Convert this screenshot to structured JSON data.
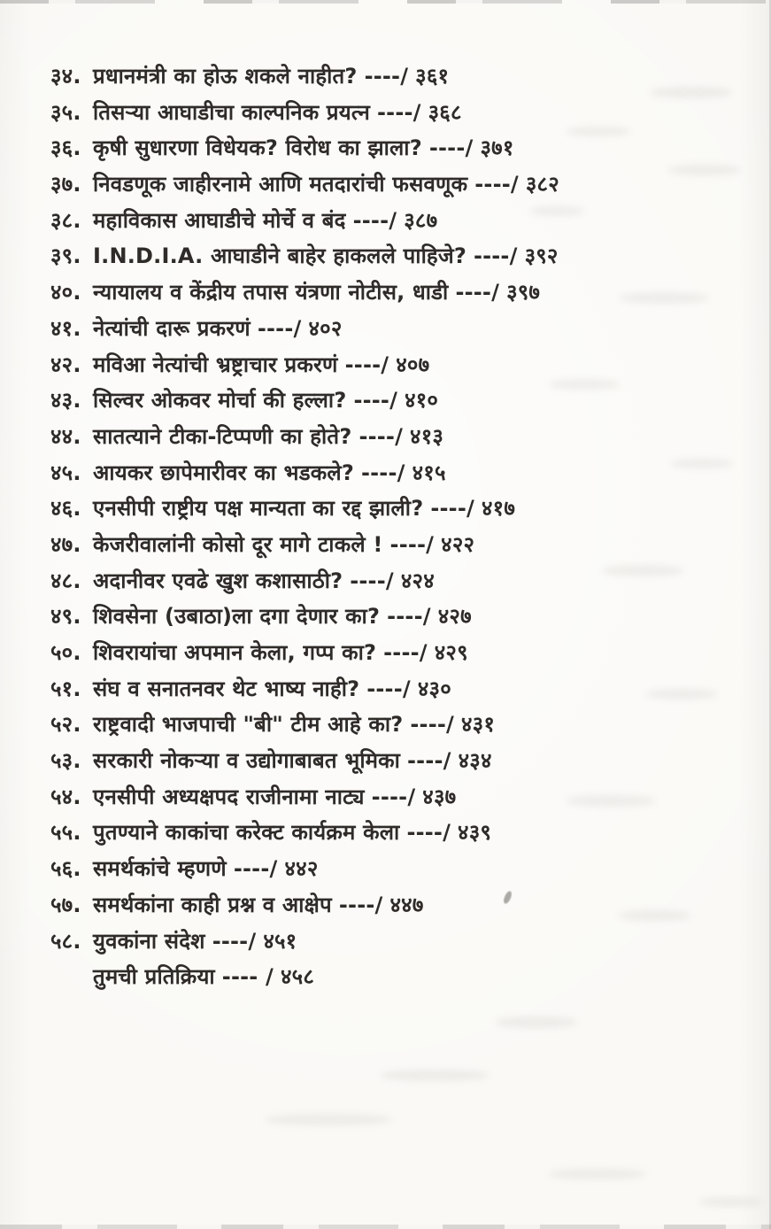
{
  "colors": {
    "paper": "#faf9f6",
    "ink": "#2e2b28",
    "bleed": "#9b978f"
  },
  "toc": {
    "items": [
      {
        "num": "३४.",
        "title": "प्रधानमंत्री का होऊ शकले नाहीत?",
        "sep": "----/",
        "page": "३६१"
      },
      {
        "num": "३५.",
        "title": "तिसऱ्या आघाडीचा काल्पनिक प्रयत्न",
        "sep": "----/",
        "page": "३६८"
      },
      {
        "num": "३६.",
        "title": "कृषी सुधारणा विधेयक? विरोध का झाला?",
        "sep": "----/",
        "page": "३७१"
      },
      {
        "num": "३७.",
        "title": "निवडणूक जाहीरनामे आणि मतदारांची फसवणूक",
        "sep": "----/",
        "page": "३८२"
      },
      {
        "num": "३८.",
        "title": "महाविकास आघाडीचे मोर्चे व बंद",
        "sep": "----/",
        "page": "३८७"
      },
      {
        "num": "३९.",
        "title": "I.N.D.I.A. आघाडीने बाहेर हाकलले पाहिजे?",
        "sep": "----/",
        "page": "३९२"
      },
      {
        "num": "४०.",
        "title": "न्यायालय व केंद्रीय तपास यंत्रणा नोटीस, धाडी",
        "sep": "----/",
        "page": "३९७"
      },
      {
        "num": "४१.",
        "title": "नेत्यांची दारू प्रकरणं",
        "sep": "----/",
        "page": "४०२"
      },
      {
        "num": "४२.",
        "title": "मविआ नेत्यांची भ्रष्ट्राचार प्रकरणं",
        "sep": "----/",
        "page": "४०७"
      },
      {
        "num": "४३.",
        "title": "सिल्वर ओकवर मोर्चा की हल्ला?",
        "sep": "----/",
        "page": "४१०"
      },
      {
        "num": "४४.",
        "title": "सातत्याने टीका-टिप्पणी का होते?",
        "sep": "----/",
        "page": "४१३"
      },
      {
        "num": "४५.",
        "title": "आयकर छापेमारीवर का भडकले?",
        "sep": "----/",
        "page": "४१५"
      },
      {
        "num": "४६.",
        "title": "एनसीपी राष्ट्रीय पक्ष मान्यता का रद्द झाली?",
        "sep": "----/",
        "page": "४१७"
      },
      {
        "num": "४७.",
        "title": "केजरीवालांनी कोसो दूर मागे टाकले !",
        "sep": "----/",
        "page": "४२२"
      },
      {
        "num": "४८.",
        "title": "अदानीवर एवढे खुश कशासाठी?",
        "sep": "----/",
        "page": "४२४"
      },
      {
        "num": "४९.",
        "title": "शिवसेना (उबाठा)ला दगा देणार का?",
        "sep": "----/",
        "page": "४२७"
      },
      {
        "num": "५०.",
        "title": "शिवरायांचा अपमान केला, गप्प का?",
        "sep": "----/",
        "page": "४२९"
      },
      {
        "num": "५१.",
        "title": "संघ व सनातनवर थेट भाष्य नाही?",
        "sep": "----/",
        "page": "४३०"
      },
      {
        "num": "५२.",
        "title": "राष्ट्रवादी भाजपाची \"बी\" टीम आहे का?",
        "sep": "----/",
        "page": "४३१"
      },
      {
        "num": "५३.",
        "title": "सरकारी नोकऱ्या व उद्योगाबाबत भूमिका",
        "sep": "----/",
        "page": "४३४"
      },
      {
        "num": "५४.",
        "title": "एनसीपी अध्यक्षपद राजीनामा नाट्य",
        "sep": "----/",
        "page": "४३७"
      },
      {
        "num": "५५.",
        "title": "पुतण्याने काकांचा करेक्ट कार्यक्रम केला",
        "sep": "----/",
        "page": "४३९"
      },
      {
        "num": "५६.",
        "title": "समर्थकांचे म्हणणे",
        "sep": "----/",
        "page": "४४२"
      },
      {
        "num": "५७.",
        "title": "समर्थकांना काही प्रश्न व आक्षेप",
        "sep": "----/",
        "page": "४४७"
      },
      {
        "num": "५८.",
        "title": "युवकांना संदेश",
        "sep": "----/",
        "page": "४५१"
      },
      {
        "num": "",
        "title": "तुमची प्रतिक्रिया",
        "sep": "---- /",
        "page": "४५८"
      }
    ]
  }
}
